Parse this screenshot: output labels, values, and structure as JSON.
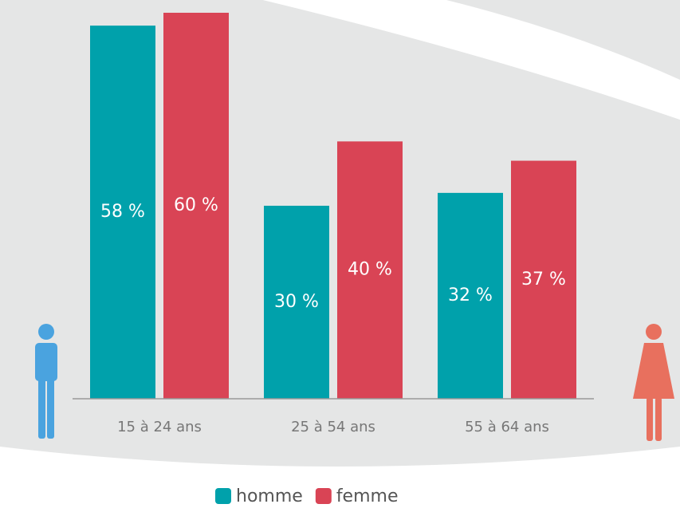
{
  "chart_data": {
    "type": "bar",
    "categories": [
      "15 à 24 ans",
      "25 à 54 ans",
      "55 à 64 ans"
    ],
    "series": [
      {
        "name": "homme",
        "color": "#00a1ab",
        "values": [
          58,
          30,
          32
        ],
        "value_labels": [
          "58 %",
          "30 %",
          "32 %"
        ]
      },
      {
        "name": "femme",
        "color": "#d94455",
        "values": [
          60,
          40,
          37
        ],
        "value_labels": [
          "60 %",
          "40 %",
          "37 %"
        ]
      }
    ],
    "ylim": [
      0,
      60
    ]
  }
}
